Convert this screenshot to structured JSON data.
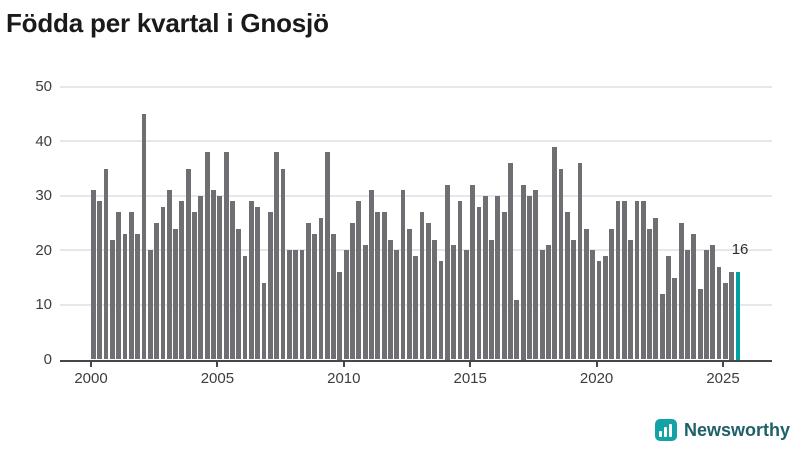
{
  "title": "Födda per kvartal i Gnosjö",
  "chart_data": {
    "type": "bar",
    "title": "Födda per kvartal i Gnosjö",
    "x_start": "2000-Q1",
    "x_end": "2025-Q3",
    "frequency": "quarterly",
    "values": [
      31,
      29,
      35,
      22,
      27,
      23,
      27,
      23,
      45,
      20,
      25,
      28,
      31,
      24,
      29,
      35,
      27,
      30,
      38,
      31,
      30,
      38,
      29,
      24,
      19,
      29,
      28,
      14,
      27,
      38,
      35,
      20,
      20,
      20,
      25,
      23,
      26,
      38,
      23,
      16,
      20,
      25,
      29,
      21,
      31,
      27,
      27,
      22,
      20,
      31,
      24,
      19,
      27,
      25,
      22,
      18,
      32,
      21,
      29,
      20,
      32,
      28,
      30,
      22,
      30,
      27,
      36,
      11,
      32,
      30,
      31,
      20,
      21,
      39,
      35,
      27,
      22,
      36,
      24,
      20,
      18,
      19,
      24,
      29,
      29,
      22,
      29,
      29,
      24,
      26,
      12,
      19,
      15,
      25,
      20,
      23,
      13,
      20,
      21,
      17,
      14,
      16,
      16
    ],
    "highlight_last_value": 16,
    "last_value_label": "16",
    "y_ticks": [
      "0",
      "10",
      "20",
      "30",
      "40",
      "50"
    ],
    "x_ticks": [
      "2000",
      "2005",
      "2010",
      "2015",
      "2020",
      "2025"
    ],
    "ylim": [
      0,
      50
    ],
    "grid": true,
    "legend": "none",
    "bar_color": "#6e6e73",
    "highlight_color": "#00a1a5"
  },
  "branding": {
    "logo_text": "Newsworthy",
    "logo_icon": "bar-chart-bubble-icon",
    "logo_color": "#13a3a6"
  }
}
